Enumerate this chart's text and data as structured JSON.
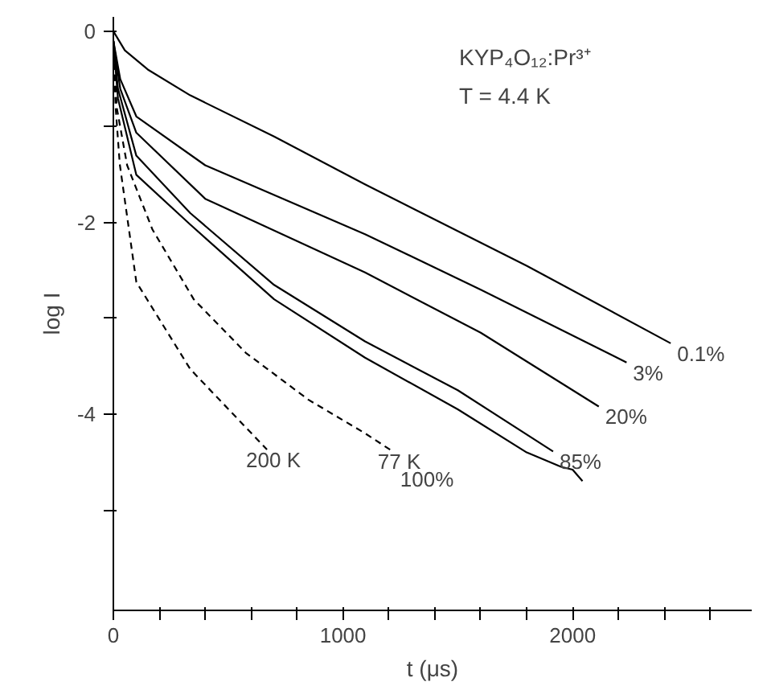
{
  "chart_data": {
    "type": "line",
    "xlabel": "t (μs)",
    "ylabel": "log I",
    "xlim": [
      0,
      2780
    ],
    "ylim": [
      -6.05,
      0.15
    ],
    "xticks": [
      0,
      {
        "value": 200,
        "label": null
      },
      {
        "value": 400,
        "label": null
      },
      {
        "value": 600,
        "label": null
      },
      {
        "value": 800,
        "label": null
      },
      1000,
      {
        "value": 1200,
        "label": null
      },
      {
        "value": 1400,
        "label": null
      },
      {
        "value": 1600,
        "label": null
      },
      {
        "value": 1800,
        "label": null
      },
      2000,
      {
        "value": 2200,
        "label": null
      },
      {
        "value": 2400,
        "label": null
      },
      {
        "value": 2600,
        "label": null
      }
    ],
    "yticks": [
      0,
      {
        "value": -1,
        "label": null
      },
      -2,
      {
        "value": -3,
        "label": null
      },
      -4,
      {
        "value": -5,
        "label": null
      }
    ],
    "grid": false,
    "marker": "none",
    "series": [
      {
        "name": "0.1%",
        "color": "#000000",
        "line_style": "solid",
        "x": [
          0,
          50,
          150,
          335,
          700,
          1096,
          1800,
          2427
        ],
        "values": [
          0,
          -0.2,
          -0.4,
          -0.67,
          -1.1,
          -1.6,
          -2.45,
          -3.26
        ]
      },
      {
        "name": "3%",
        "color": "#000000",
        "line_style": "solid",
        "x": [
          0,
          30,
          100,
          400,
          1096,
          1600,
          2235
        ],
        "values": [
          -0.1,
          -0.5,
          -0.89,
          -1.4,
          -2.12,
          -2.7,
          -3.46
        ]
      },
      {
        "name": "20%",
        "color": "#000000",
        "line_style": "solid",
        "x": [
          0,
          30,
          100,
          400,
          1096,
          1600,
          2114
        ],
        "values": [
          -0.1,
          -0.6,
          -1.06,
          -1.75,
          -2.52,
          -3.15,
          -3.92
        ]
      },
      {
        "name": "85%",
        "color": "#000000",
        "line_style": "solid",
        "x": [
          0,
          20,
          100,
          335,
          700,
          1096,
          1500,
          1915
        ],
        "values": [
          -0.1,
          -0.6,
          -1.3,
          -1.9,
          -2.65,
          -3.24,
          -3.75,
          -4.39
        ]
      },
      {
        "color": "#000000",
        "line_style": "solid",
        "x": [
          0,
          20,
          100,
          335,
          700,
          1096,
          1500,
          1800,
          1850,
          1900,
          1950,
          2000,
          2043
        ],
        "values": [
          -0.1,
          -0.7,
          -1.5,
          -2.02,
          -2.8,
          -3.41,
          -3.95,
          -4.4,
          -4.45,
          -4.5,
          -4.55,
          -4.58,
          -4.7
        ]
      },
      {
        "name": "77 K",
        "color": "#000000",
        "line_style": "dashed",
        "x": [
          0,
          15,
          60,
          170,
          350,
          577,
          850,
          1096,
          1217
        ],
        "values": [
          -0.1,
          -0.8,
          -1.4,
          -2.07,
          -2.8,
          -3.36,
          -3.85,
          -4.2,
          -4.39
        ]
      },
      {
        "name": "200 K",
        "color": "#000000",
        "line_style": "dashed",
        "x": [
          0,
          10,
          28,
          100,
          335,
          669
        ],
        "values": [
          -0.1,
          -0.8,
          -1.39,
          -2.62,
          -3.53,
          -4.37
        ]
      }
    ],
    "annotations": [
      "KYP₄O₁₂:Pr³⁺",
      "T = 4.4 K",
      "100%"
    ]
  }
}
